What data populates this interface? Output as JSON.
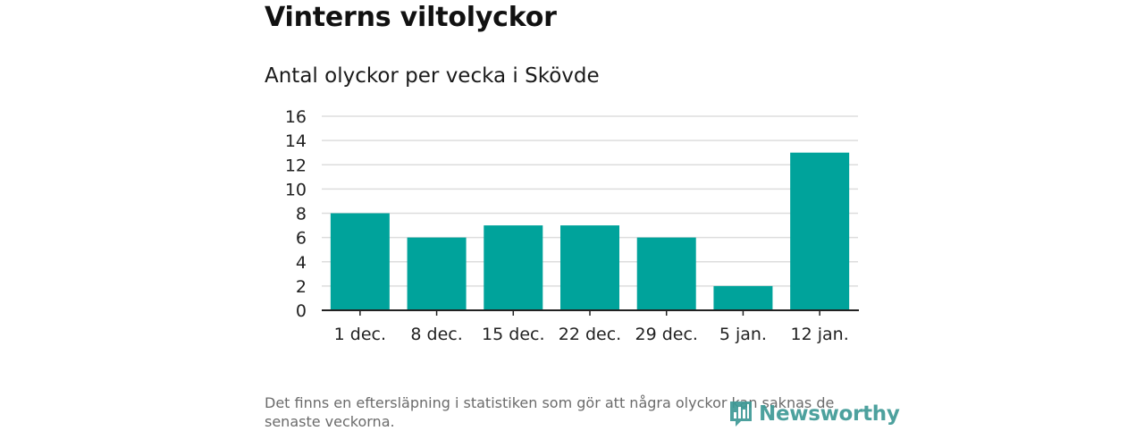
{
  "title": "Vinterns viltolyckor",
  "subtitle": "Antal olyckor per vecka i Skövde",
  "footnote": "Det finns en eftersläpning i statistiken som gör att några olyckor kan saknas de senaste veckorna.",
  "logo": {
    "text": "Newsworthy",
    "icon": "bar-chart-logo-icon"
  },
  "colors": {
    "bar": "#00a39b",
    "grid": "#dddddd",
    "axis": "#222222",
    "logo": "#3e9a96"
  },
  "chart_data": {
    "type": "bar",
    "title": "Vinterns viltolyckor",
    "subtitle": "Antal olyckor per vecka i Skövde",
    "categories": [
      "1 dec.",
      "8 dec.",
      "15 dec.",
      "22 dec.",
      "29 dec.",
      "5 jan.",
      "12 jan."
    ],
    "values": [
      8,
      6,
      7,
      7,
      6,
      2,
      13
    ],
    "xlabel": "",
    "ylabel": "",
    "ylim": [
      0,
      16
    ],
    "yticks": [
      0,
      2,
      4,
      6,
      8,
      10,
      12,
      14,
      16
    ],
    "grid": true,
    "legend": "none"
  }
}
